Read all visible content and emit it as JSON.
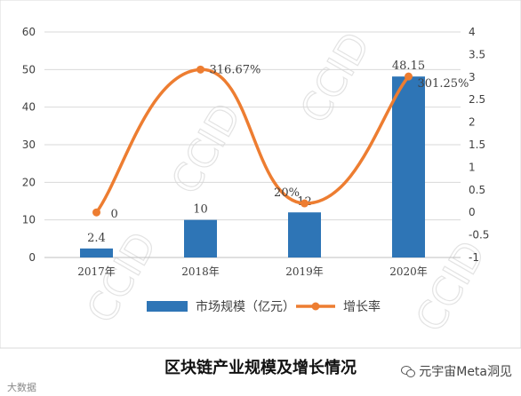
{
  "chart_data": {
    "type": "bar+line",
    "categories": [
      "2017年",
      "2018年",
      "2019年",
      "2020年"
    ],
    "series": [
      {
        "name": "市场规模（亿元）",
        "type": "bar",
        "axis": "left",
        "values": [
          2.4,
          10,
          12,
          48.15
        ],
        "labels": [
          "2.4",
          "10",
          "12",
          "48.15"
        ],
        "color": "#2E75B6"
      },
      {
        "name": "增长率",
        "type": "line",
        "axis": "right",
        "values": [
          0,
          3.1667,
          0.2,
          3.0125
        ],
        "labels": [
          "0",
          "316.67%",
          "20%",
          "301.25%"
        ],
        "color": "#ED7D31",
        "smooth": true
      }
    ],
    "left_axis": {
      "ylim": [
        0,
        60
      ],
      "ticks": [
        0,
        10,
        20,
        30,
        40,
        50,
        60
      ],
      "tick_labels": [
        "0",
        "10",
        "20",
        "30",
        "40",
        "50",
        "60"
      ]
    },
    "right_axis": {
      "ylim": [
        -1,
        4
      ],
      "ticks": [
        -1,
        -0.5,
        0,
        0.5,
        1,
        1.5,
        2,
        2.5,
        3,
        3.5,
        4
      ],
      "tick_labels": [
        "-1",
        "-0.5",
        "0",
        "0.5",
        "1",
        "1.5",
        "2",
        "2.5",
        "3",
        "3.5",
        "4"
      ]
    },
    "grid": true,
    "legend": "bottom",
    "title": "区块链产业规模及增长情况"
  },
  "watermark": "CCID",
  "brand": "元宇宙Meta洞见",
  "corner_mark": "大数据"
}
